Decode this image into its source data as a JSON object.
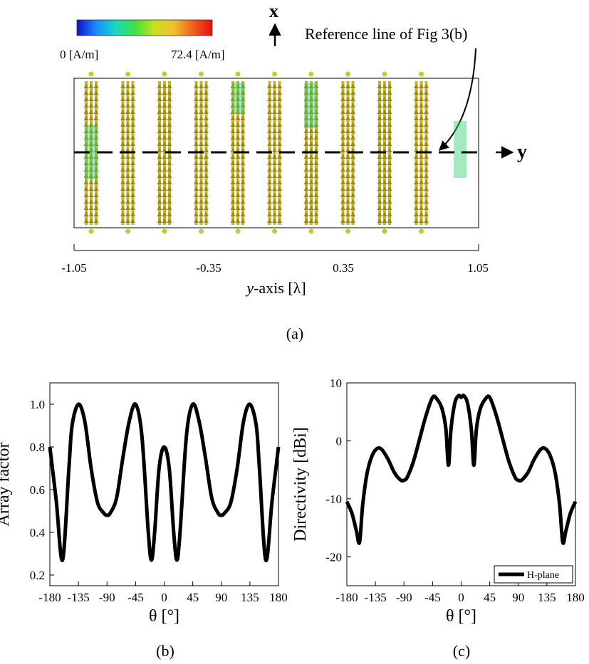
{
  "figure_a": {
    "colorbar": {
      "min_label": "0 [A/m]",
      "max_label": "72.4 [A/m]",
      "colors": [
        "#1010c8",
        "#1a8cff",
        "#18d8c0",
        "#40e040",
        "#c8e020",
        "#f0c030",
        "#f06020",
        "#e01010"
      ]
    },
    "x_axis_letter": "x",
    "y_axis_letter": "y",
    "reference_annotation": "Reference line of Fig 3(b)",
    "xlabel_italic": "y",
    "xlabel_rest": "-axis [λ]",
    "tick_labels": [
      "-1.05",
      "-0.35",
      "0.35",
      "1.05"
    ],
    "strip_count": 10,
    "arrow_color": "#c8b42a",
    "caption": "(a)"
  },
  "chart_data": [
    {
      "type": "line",
      "title": "",
      "xlabel": "θ [°]",
      "ylabel": "Array factor",
      "xlim": [
        -180,
        180
      ],
      "ylim": [
        0.15,
        1.1
      ],
      "xticks": [
        -180,
        -135,
        -90,
        -45,
        0,
        45,
        90,
        135,
        180
      ],
      "yticks": [
        0.2,
        0.4,
        0.6,
        0.8,
        1.0
      ],
      "ytick_labels": [
        "0.2",
        "0.4",
        "0.6",
        "0.8",
        "1.0"
      ],
      "series": [
        {
          "name": "",
          "x": [
            -180,
            -170,
            -160,
            -150,
            -145,
            -135,
            -125,
            -115,
            -105,
            -95,
            -90,
            -85,
            -75,
            -65,
            -55,
            -45,
            -35,
            -25,
            -20,
            -15,
            -8,
            0,
            8,
            15,
            20,
            25,
            35,
            45,
            55,
            65,
            75,
            85,
            90,
            95,
            105,
            115,
            125,
            135,
            145,
            150,
            160,
            170,
            180
          ],
          "y": [
            0.8,
            0.55,
            0.27,
            0.7,
            0.9,
            1.0,
            0.92,
            0.7,
            0.54,
            0.49,
            0.48,
            0.49,
            0.56,
            0.75,
            0.92,
            1.0,
            0.85,
            0.4,
            0.27,
            0.4,
            0.7,
            0.8,
            0.7,
            0.4,
            0.27,
            0.4,
            0.85,
            1.0,
            0.92,
            0.75,
            0.56,
            0.49,
            0.48,
            0.49,
            0.54,
            0.7,
            0.92,
            1.0,
            0.9,
            0.7,
            0.27,
            0.55,
            0.8
          ]
        }
      ],
      "grid": false,
      "caption": "(b)"
    },
    {
      "type": "line",
      "title": "",
      "xlabel": "θ [°]",
      "ylabel": "Directivity [dBi]",
      "xlim": [
        -180,
        180
      ],
      "ylim": [
        -25,
        10
      ],
      "xticks": [
        -180,
        -135,
        -90,
        -45,
        0,
        45,
        90,
        135,
        180
      ],
      "yticks": [
        -20,
        -10,
        0,
        10
      ],
      "ytick_labels": [
        "-20",
        "-10",
        "0",
        "10"
      ],
      "series": [
        {
          "name": "H-plane",
          "x": [
            -180,
            -172,
            -165,
            -160,
            -155,
            -148,
            -140,
            -132,
            -125,
            -115,
            -105,
            -95,
            -90,
            -85,
            -75,
            -65,
            -55,
            -45,
            -38,
            -30,
            -24,
            -20,
            -16,
            -10,
            -4,
            0,
            4,
            10,
            16,
            20,
            24,
            30,
            38,
            45,
            55,
            65,
            75,
            85,
            90,
            95,
            105,
            115,
            125,
            132,
            140,
            148,
            155,
            160,
            165,
            172,
            180
          ],
          "y": [
            -10.5,
            -12.5,
            -15.5,
            -17.5,
            -11,
            -5.5,
            -2.5,
            -1.3,
            -1.5,
            -3.2,
            -5.5,
            -6.8,
            -6.8,
            -6.3,
            -3.5,
            0.5,
            4.5,
            7.5,
            7.2,
            5.5,
            2,
            -4.2,
            2,
            6.5,
            7.8,
            7.5,
            7.8,
            6.5,
            2,
            -4.2,
            2,
            5.5,
            7.2,
            7.5,
            4.5,
            0.5,
            -3.5,
            -6.3,
            -6.8,
            -6.8,
            -5.5,
            -3.2,
            -1.5,
            -1.3,
            -2.5,
            -5.5,
            -11,
            -17.5,
            -15.5,
            -12.5,
            -10.5
          ]
        }
      ],
      "legend": "bottom-right",
      "grid": false,
      "caption": "(c)"
    }
  ]
}
